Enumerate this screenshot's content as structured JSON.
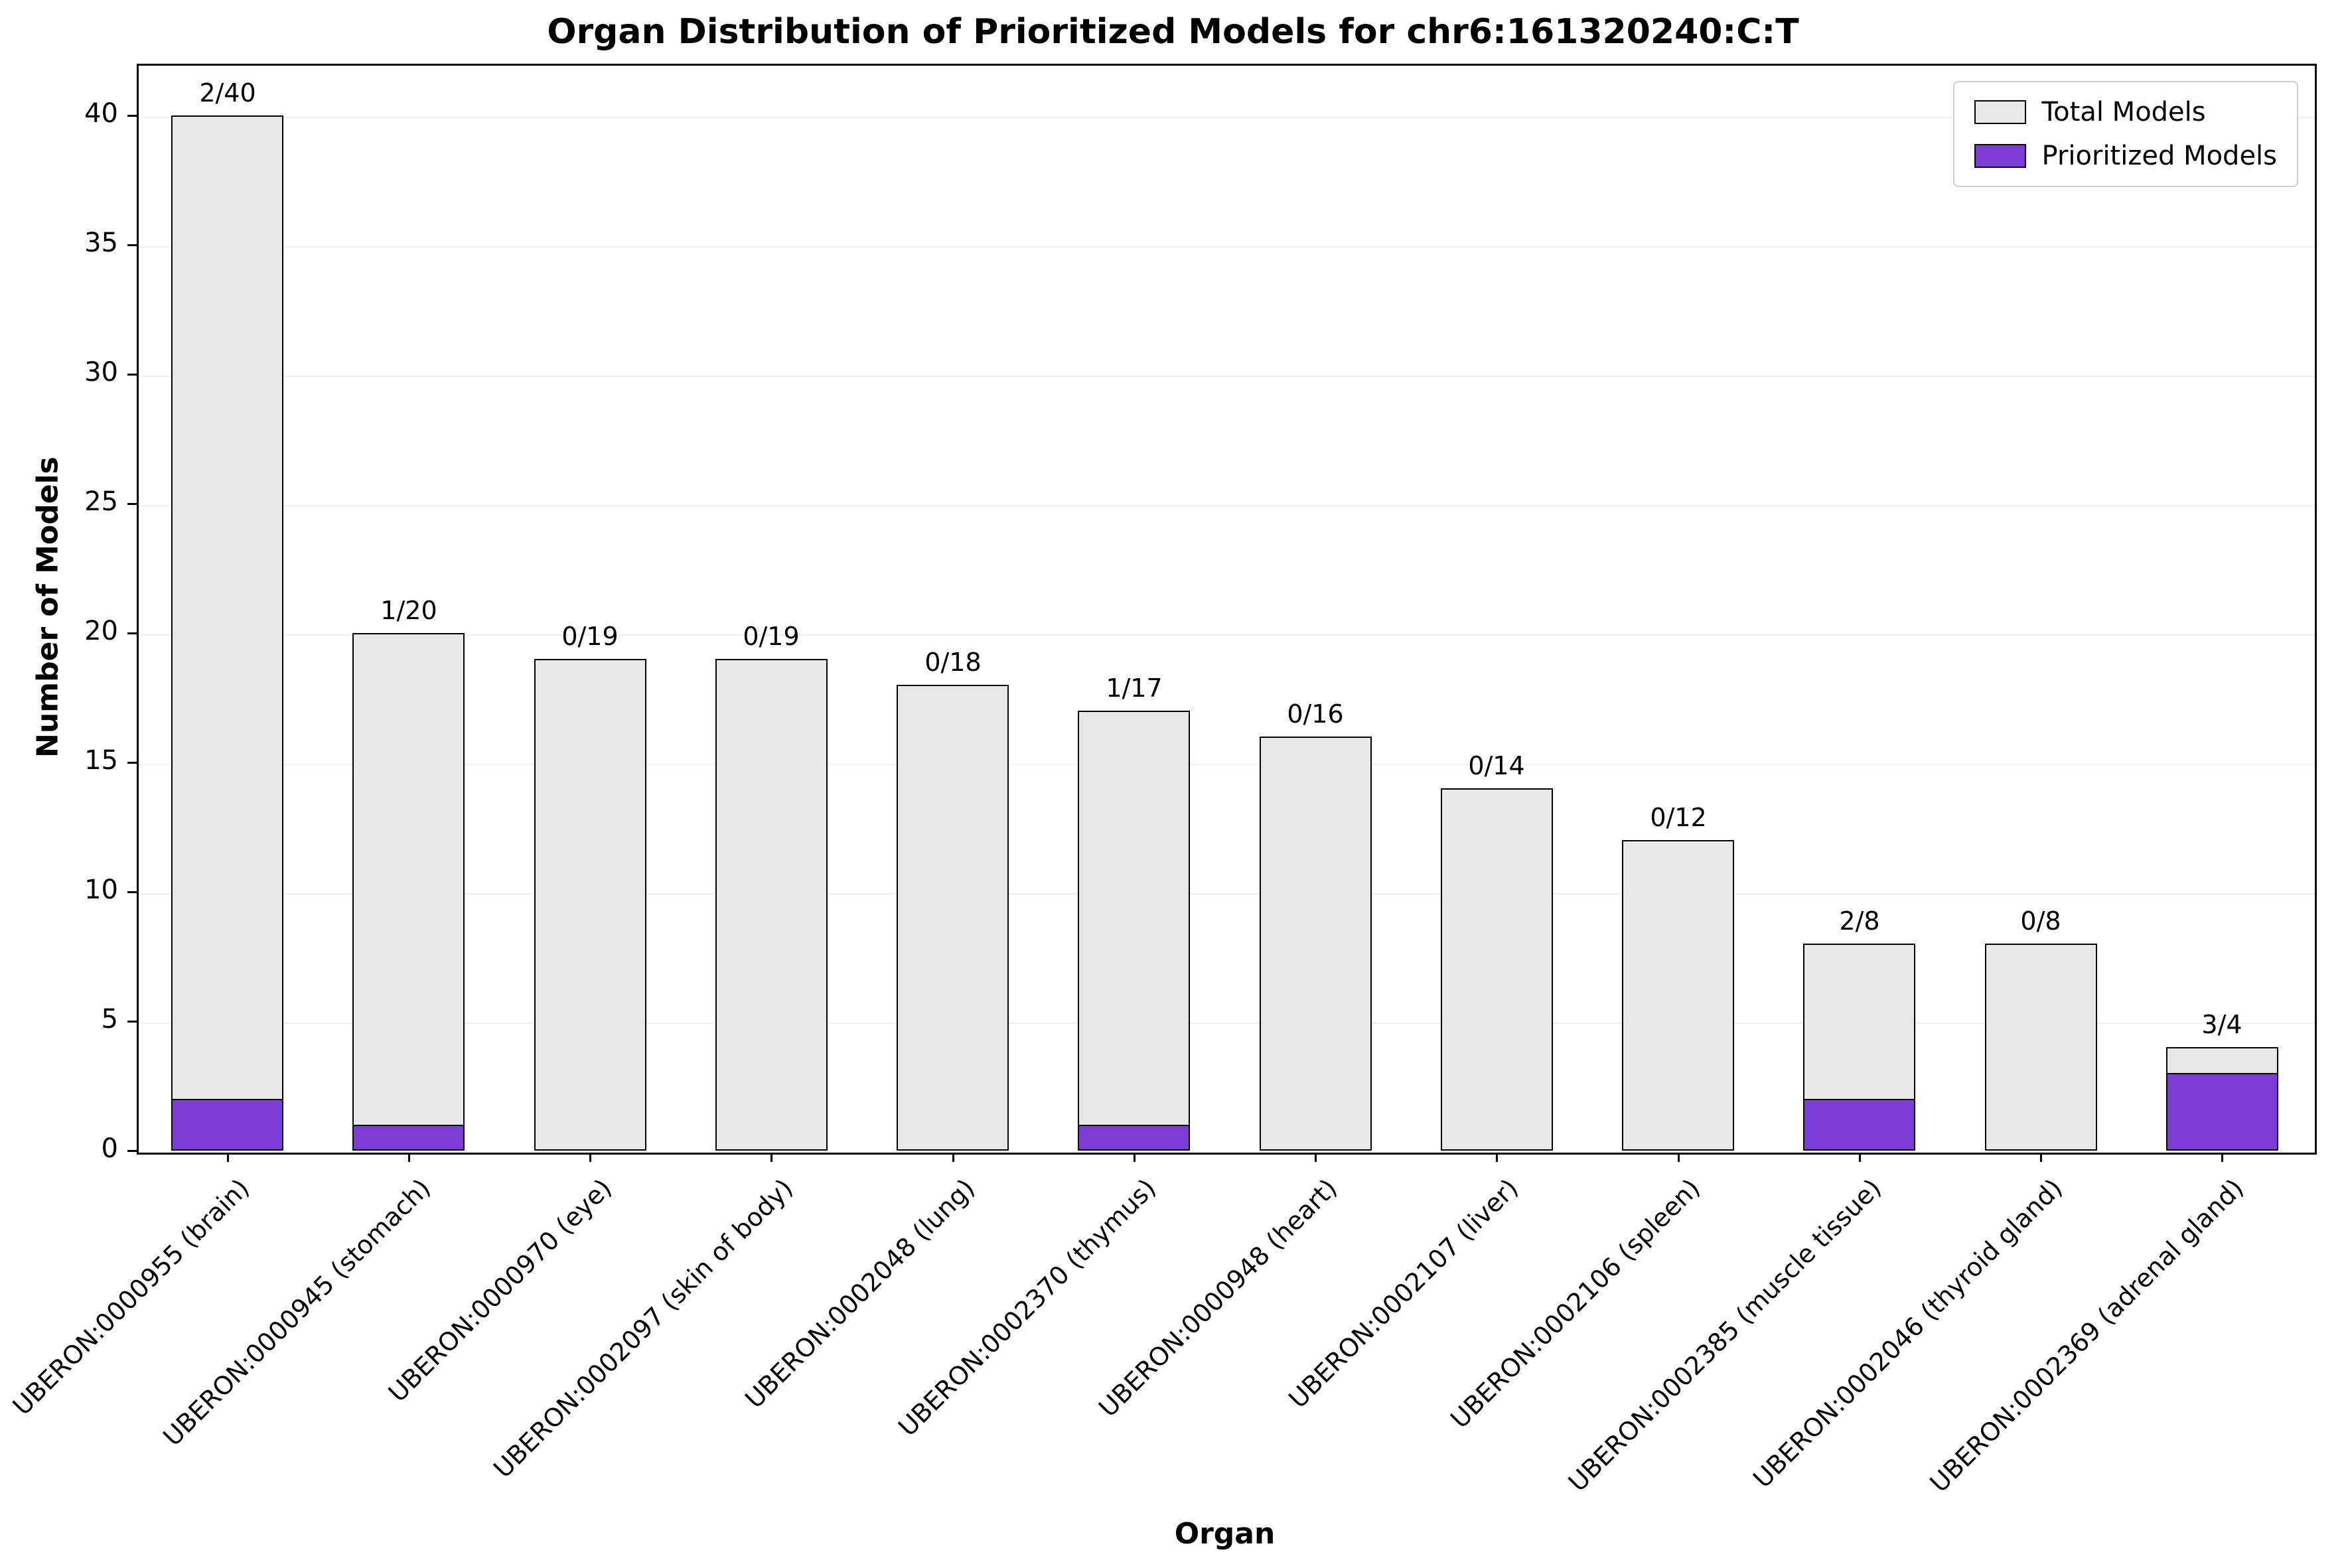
{
  "chart_data": {
    "type": "bar",
    "title": "Organ Distribution of Prioritized Models for chr6:161320240:C:T",
    "xlabel": "Organ",
    "ylabel": "Number of Models",
    "ylim": [
      0,
      42
    ],
    "yticks": [
      0,
      5,
      10,
      15,
      20,
      25,
      30,
      35,
      40
    ],
    "grid": true,
    "legend_position": "upper right",
    "categories": [
      "UBERON:0000955 (brain)",
      "UBERON:0000945 (stomach)",
      "UBERON:0000970 (eye)",
      "UBERON:0002097 (skin of body)",
      "UBERON:0002048 (lung)",
      "UBERON:0002370 (thymus)",
      "UBERON:0000948 (heart)",
      "UBERON:0002107 (liver)",
      "UBERON:0002106 (spleen)",
      "UBERON:0002385 (muscle tissue)",
      "UBERON:0002046 (thyroid gland)",
      "UBERON:0002369 (adrenal gland)"
    ],
    "series": [
      {
        "name": "Total Models",
        "color": "#e8e8e8",
        "values": [
          40,
          20,
          19,
          19,
          18,
          17,
          16,
          14,
          12,
          8,
          8,
          4
        ]
      },
      {
        "name": "Prioritized Models",
        "color": "#7d3cd6",
        "values": [
          2,
          1,
          0,
          0,
          0,
          1,
          0,
          0,
          0,
          2,
          0,
          3
        ]
      }
    ],
    "bar_labels": [
      "2/40",
      "1/20",
      "0/19",
      "0/19",
      "0/18",
      "1/17",
      "0/16",
      "0/14",
      "0/12",
      "2/8",
      "0/8",
      "3/4"
    ]
  }
}
